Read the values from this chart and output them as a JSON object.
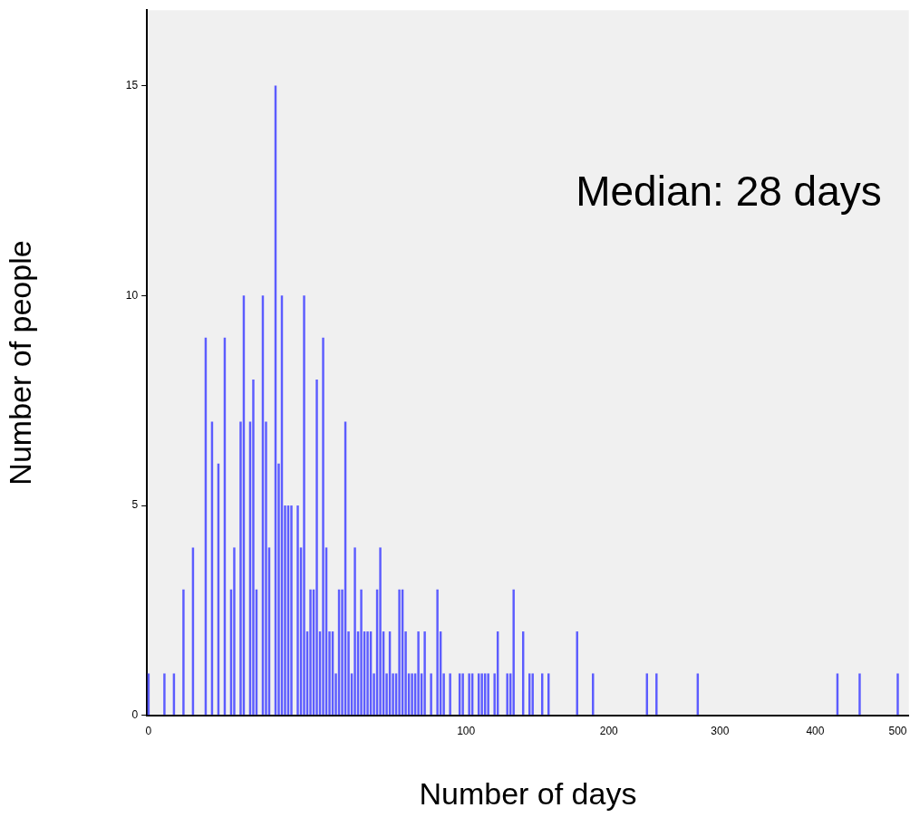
{
  "chart_data": {
    "type": "bar",
    "xlabel": "Number of days",
    "ylabel": "Number of people",
    "annotations": [
      "Median: 28 days"
    ],
    "color": "#5c5cff",
    "ylim": [
      0,
      16.8
    ],
    "yticks": [
      0,
      5,
      10,
      15
    ],
    "categories": [
      "0",
      null,
      null,
      null,
      null,
      null,
      null,
      null,
      null,
      null,
      null,
      null,
      null,
      null,
      null,
      null,
      null,
      null,
      null,
      null,
      null,
      null,
      null,
      null,
      null,
      null,
      null,
      null,
      null,
      null,
      null,
      null,
      null,
      null,
      null,
      null,
      null,
      null,
      null,
      null,
      null,
      null,
      null,
      null,
      null,
      null,
      null,
      null,
      null,
      null,
      null,
      null,
      null,
      null,
      null,
      null,
      null,
      null,
      null,
      null,
      null,
      null,
      null,
      null,
      null,
      null,
      null,
      null,
      null,
      null,
      null,
      null,
      null,
      null,
      null,
      null,
      null,
      null,
      null,
      null,
      null,
      null,
      null,
      null,
      null,
      null,
      null,
      null,
      null,
      null,
      null,
      null,
      null,
      null,
      null,
      null,
      null,
      null,
      null,
      null,
      "100",
      null,
      null,
      null,
      null,
      null,
      null,
      null,
      null,
      null,
      null,
      null,
      null,
      null,
      null,
      null,
      null,
      null,
      null,
      null,
      null,
      null,
      null,
      null,
      null,
      null,
      null,
      null,
      null,
      null,
      null,
      null,
      null,
      null,
      null,
      null,
      null,
      null,
      null,
      null,
      null,
      null,
      null,
      null,
      null,
      "200",
      null,
      null,
      null,
      null,
      null,
      null,
      null,
      null,
      null,
      null,
      null,
      null,
      null,
      null,
      null,
      null,
      null,
      null,
      null,
      null,
      null,
      null,
      null,
      null,
      null,
      null,
      null,
      null,
      null,
      null,
      null,
      null,
      null,
      null,
      "300",
      null,
      null,
      null,
      null,
      null,
      null,
      null,
      null,
      null,
      null,
      null,
      null,
      null,
      null,
      null,
      null,
      null,
      null,
      null,
      null,
      null,
      null,
      null,
      null,
      null,
      null,
      null,
      null,
      null,
      "400",
      null,
      null,
      null,
      null,
      null,
      null,
      null,
      null,
      null,
      null,
      null,
      null,
      null,
      null,
      null,
      null,
      null,
      null,
      null,
      null,
      null,
      null,
      null,
      null,
      null,
      "500",
      null,
      null,
      null
    ],
    "values": [
      1,
      null,
      null,
      null,
      null,
      1,
      null,
      null,
      1,
      null,
      null,
      3,
      null,
      null,
      4,
      null,
      null,
      null,
      9,
      null,
      7,
      null,
      6,
      null,
      9,
      null,
      3,
      4,
      null,
      7,
      10,
      null,
      7,
      8,
      3,
      null,
      10,
      7,
      4,
      null,
      15,
      6,
      10,
      5,
      5,
      5,
      null,
      5,
      4,
      10,
      2,
      3,
      3,
      8,
      2,
      9,
      4,
      2,
      2,
      1,
      3,
      3,
      7,
      2,
      1,
      4,
      2,
      3,
      2,
      2,
      2,
      1,
      3,
      4,
      2,
      1,
      2,
      1,
      1,
      3,
      3,
      2,
      1,
      1,
      1,
      2,
      1,
      2,
      null,
      1,
      null,
      3,
      2,
      1,
      null,
      1,
      null,
      null,
      1,
      1,
      null,
      1,
      1,
      null,
      1,
      1,
      1,
      1,
      null,
      1,
      2,
      null,
      null,
      1,
      1,
      3,
      null,
      null,
      2,
      null,
      1,
      1,
      null,
      null,
      1,
      null,
      1,
      null,
      null,
      null,
      null,
      null,
      null,
      null,
      null,
      2,
      null,
      null,
      null,
      null,
      1,
      null,
      null,
      null,
      null,
      null,
      null,
      null,
      null,
      null,
      null,
      null,
      null,
      null,
      null,
      null,
      null,
      1,
      null,
      null,
      1,
      null,
      null,
      null,
      null,
      null,
      null,
      null,
      null,
      null,
      null,
      null,
      null,
      1,
      null,
      null,
      null,
      null,
      null,
      null,
      null,
      null,
      null,
      null,
      null,
      null,
      null,
      null,
      null,
      null,
      null,
      null,
      null,
      null,
      null,
      null,
      null,
      null,
      null,
      null,
      null,
      null,
      null,
      null,
      null,
      null,
      null,
      null,
      null,
      null,
      null,
      null,
      null,
      null,
      null,
      null,
      null,
      1,
      null,
      null,
      null,
      null,
      null,
      null,
      1,
      null,
      null,
      null,
      null,
      null,
      null,
      null,
      null,
      null,
      null,
      null,
      1,
      null,
      null,
      null
    ]
  }
}
